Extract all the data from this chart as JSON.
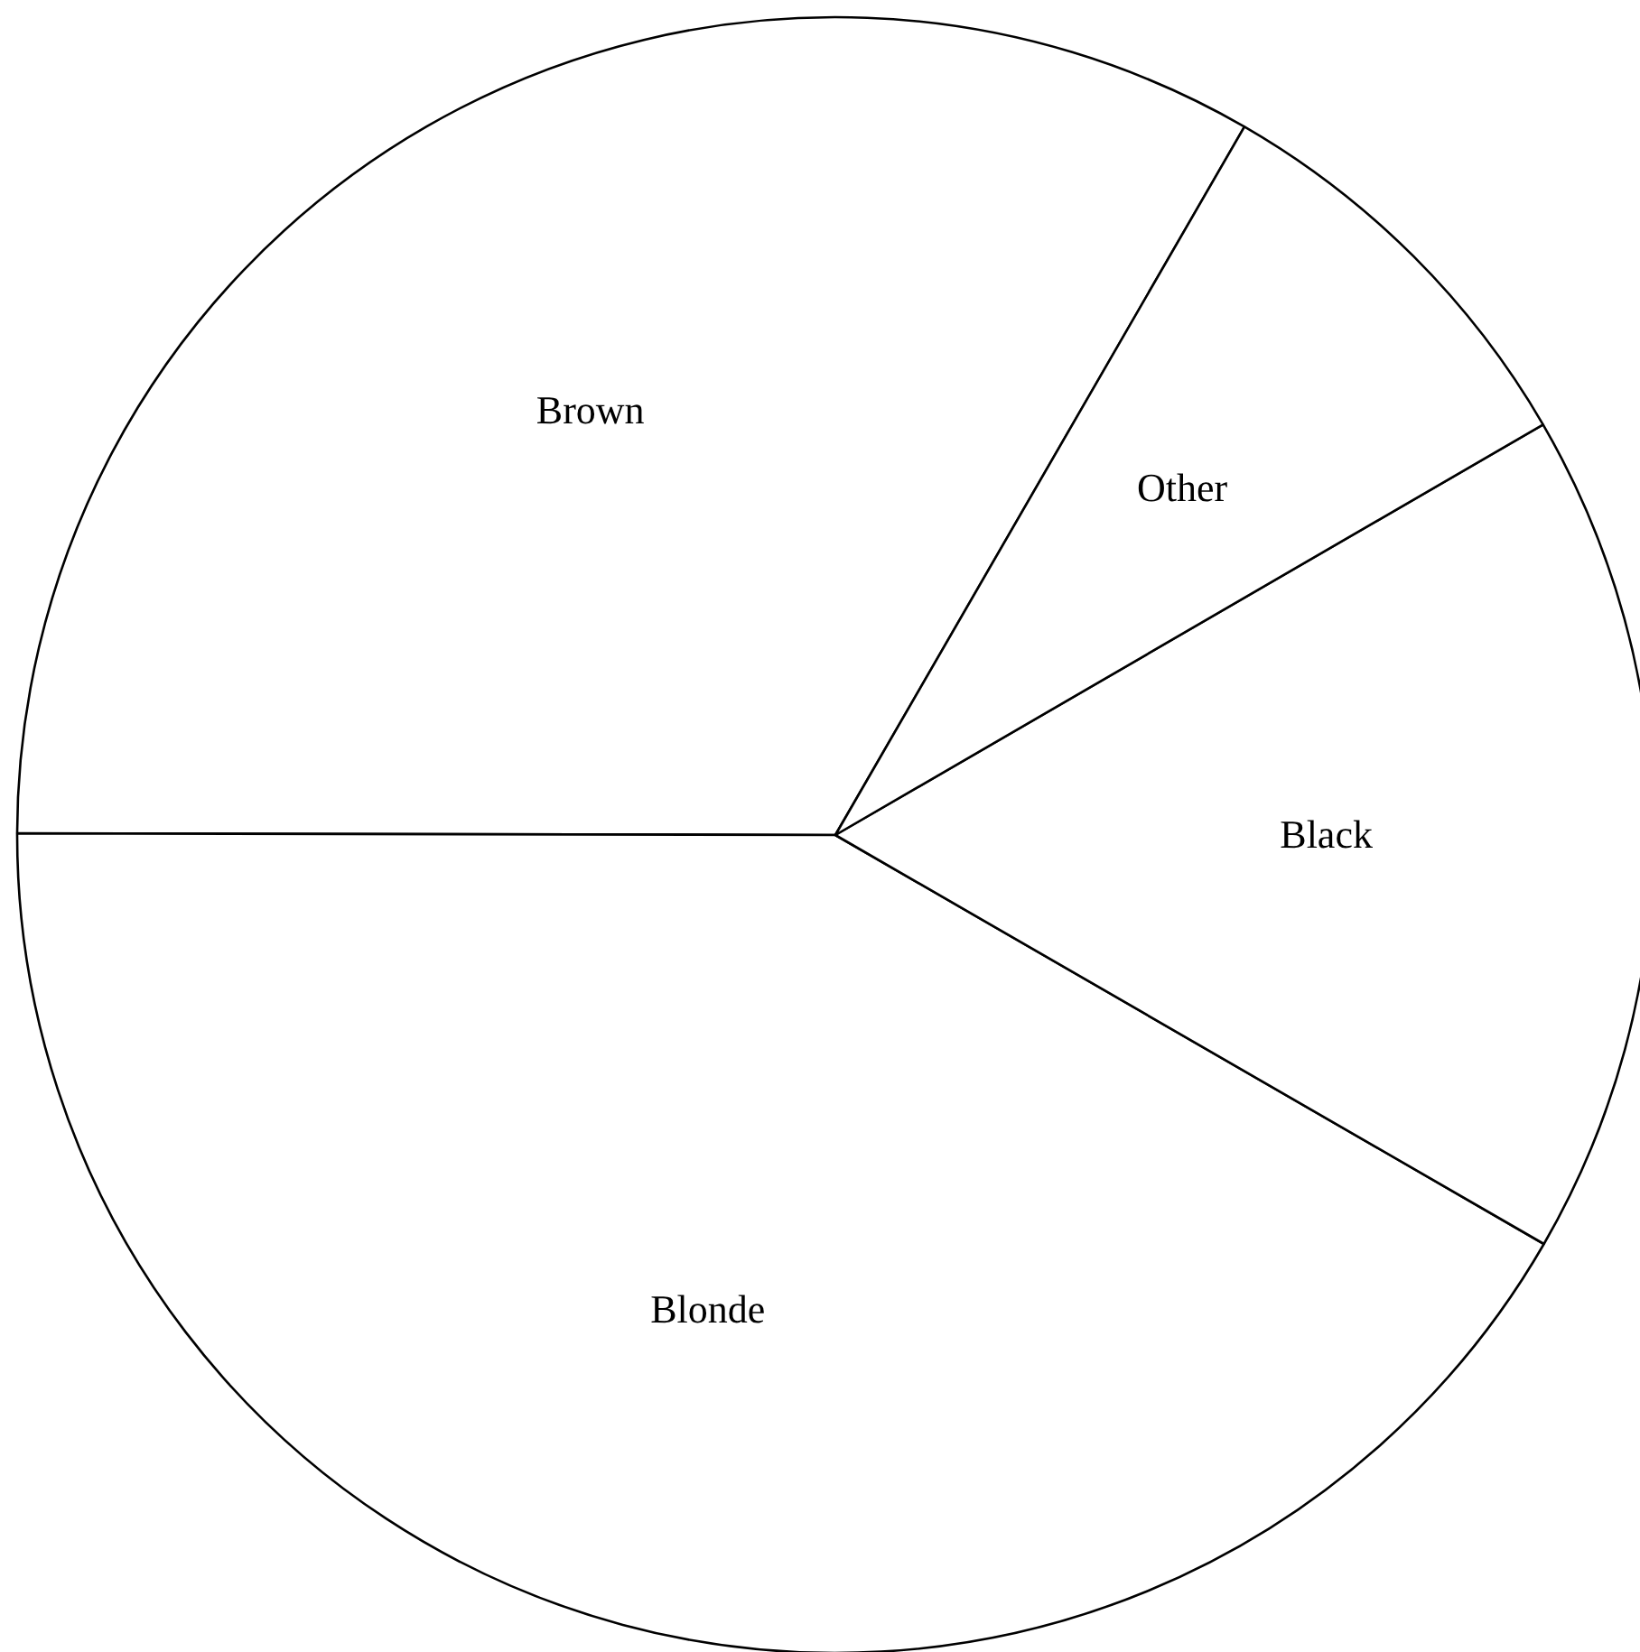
{
  "chart_data": {
    "type": "pie",
    "categories": [
      "Brown",
      "Blonde",
      "Black",
      "Other"
    ],
    "values": [
      33.3,
      41.7,
      16.7,
      8.3
    ],
    "colors": [
      "#ffffff",
      "#ffffff",
      "#ffffff",
      "#ffffff"
    ]
  }
}
